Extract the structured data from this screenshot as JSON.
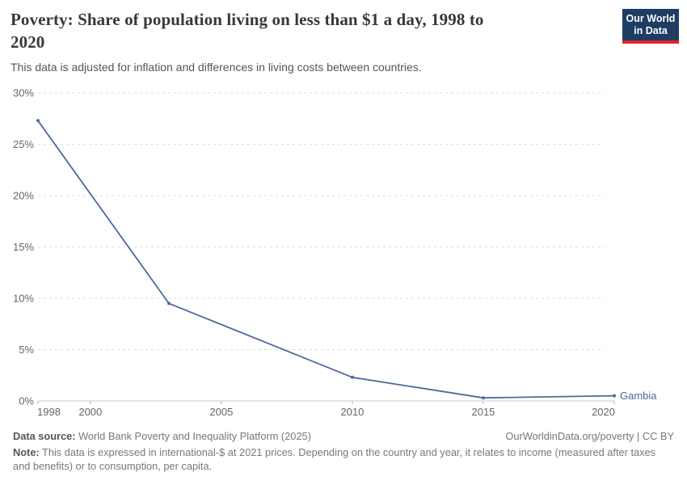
{
  "header": {
    "title": "Poverty: Share of population living on less than $1 a day, 1998 to 2020",
    "title_lines": [
      "Poverty: Share of population living on less than $1 a day, 1998 to",
      "2020"
    ],
    "subtitle": "This data is adjusted for inflation and differences in living costs between countries.",
    "logo": {
      "line1": "Our World",
      "line2": "in Data"
    }
  },
  "chart_data": {
    "type": "line",
    "title": "Poverty: Share of population living on less than $1 a day, 1998 to 2020",
    "subtitle": "This data is adjusted for inflation and differences in living costs between countries.",
    "xlabel": "",
    "ylabel": "",
    "xlim": [
      1998,
      2020
    ],
    "ylim": [
      0,
      30
    ],
    "grid": "horizontal-dashed",
    "legend_position": "end-of-line-label",
    "series": [
      {
        "name": "Gambia",
        "color": "#4C6A9C",
        "points": [
          {
            "x": 1998,
            "y": 27.3
          },
          {
            "x": 2003,
            "y": 9.5
          },
          {
            "x": 2010,
            "y": 2.3
          },
          {
            "x": 2015,
            "y": 0.3
          },
          {
            "x": 2020,
            "y": 0.5
          }
        ]
      }
    ],
    "xticks": [
      {
        "value": 1998,
        "label": "1998"
      },
      {
        "value": 2000,
        "label": "2000"
      },
      {
        "value": 2005,
        "label": "2005"
      },
      {
        "value": 2010,
        "label": "2010"
      },
      {
        "value": 2015,
        "label": "2015"
      },
      {
        "value": 2020,
        "label": "2020"
      }
    ],
    "yticks": [
      {
        "value": 0,
        "label": "0%"
      },
      {
        "value": 5,
        "label": "5%"
      },
      {
        "value": 10,
        "label": "10%"
      },
      {
        "value": 15,
        "label": "15%"
      },
      {
        "value": 20,
        "label": "20%"
      },
      {
        "value": 25,
        "label": "25%"
      },
      {
        "value": 30,
        "label": "30%"
      }
    ],
    "end_label": "Gambia"
  },
  "footer": {
    "datasource_label": "Data source:",
    "datasource_value": " World Bank Poverty and Inequality Platform (2025)",
    "attribution": "OurWorldinData.org/poverty | CC BY",
    "note_label": "Note:",
    "note_value": " This data is expressed in international-$ at 2021 prices. Depending on the country and year, it relates to income (measured after taxes and benefits) or to consumption, per capita."
  },
  "colors": {
    "line": "#4C6A9C",
    "grid": "#dddddd",
    "axis": "#cbcbcb",
    "tick_mark": "#b3b3b3",
    "tick_text": "#666666",
    "title_text": "#383838",
    "subtitle_text": "#555555",
    "footer_text": "#787878",
    "logo_bg": "#1d3d63",
    "logo_accent": "#e0232e",
    "background": "#ffffff"
  }
}
